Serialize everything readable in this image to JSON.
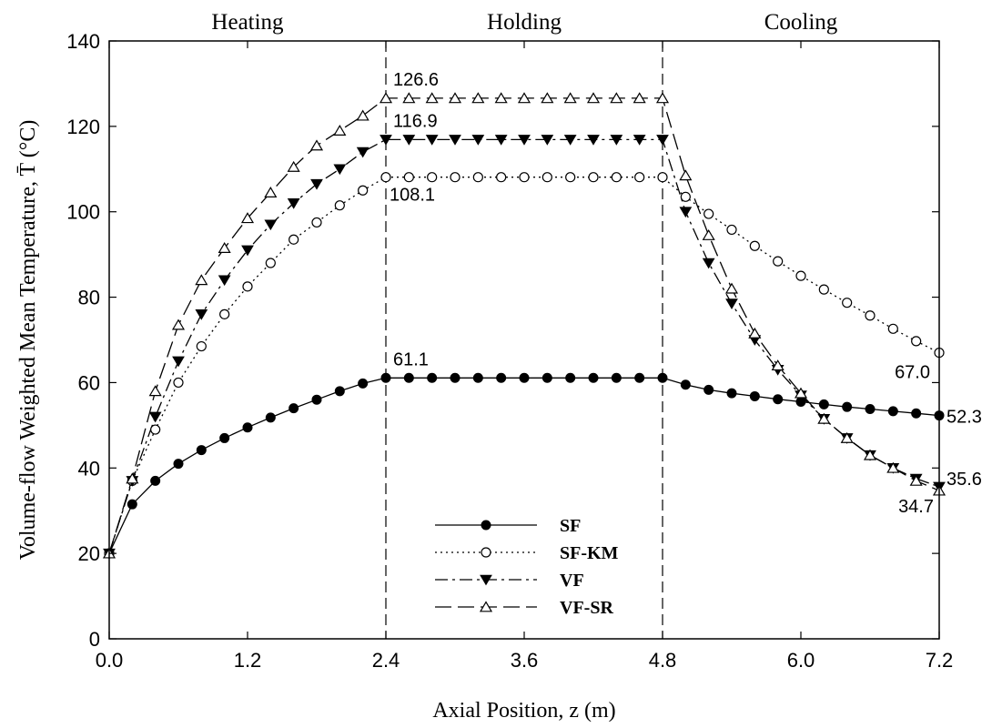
{
  "chart_data": {
    "type": "line",
    "xlabel": "Axial Position, z (m)",
    "ylabel": "Volume-flow Weighted Mean Temperature, T̄ (°C)",
    "xlim": [
      0,
      7.2
    ],
    "ylim": [
      0,
      140
    ],
    "x_ticks": [
      "0.0",
      "1.2",
      "2.4",
      "3.6",
      "4.8",
      "6.0",
      "7.2"
    ],
    "y_ticks": [
      "0",
      "20",
      "40",
      "60",
      "80",
      "100",
      "120",
      "140"
    ],
    "grid": false,
    "legend_position": "bottom-center",
    "sections": [
      {
        "label": "Heating"
      },
      {
        "label": "Holding"
      },
      {
        "label": "Cooling"
      }
    ],
    "dividers_x": [
      2.4,
      4.8
    ],
    "x": [
      0,
      0.2,
      0.4,
      0.6,
      0.8,
      1.0,
      1.2,
      1.4,
      1.6,
      1.8,
      2.0,
      2.2,
      2.4,
      2.6,
      2.8,
      3.0,
      3.2,
      3.4,
      3.6,
      3.8,
      4.0,
      4.2,
      4.4,
      4.6,
      4.8,
      5.0,
      5.2,
      5.4,
      5.6,
      5.8,
      6.0,
      6.2,
      6.4,
      6.6,
      6.8,
      7.0,
      7.2
    ],
    "series": [
      {
        "name": "SF",
        "marker": "filled-circle",
        "dash": "solid",
        "values": [
          20,
          31.5,
          37,
          41,
          44.2,
          47,
          49.5,
          51.8,
          54,
          56,
          58,
          59.8,
          61.1,
          61.1,
          61.1,
          61.1,
          61.1,
          61.1,
          61.1,
          61.1,
          61.1,
          61.1,
          61.1,
          61.1,
          61.1,
          59.5,
          58.3,
          57.5,
          56.8,
          56.1,
          55.5,
          54.9,
          54.3,
          53.8,
          53.3,
          52.8,
          52.3
        ]
      },
      {
        "name": "SF-KM",
        "marker": "open-circle",
        "dash": "dotted",
        "values": [
          20,
          37,
          49,
          60,
          68.5,
          76,
          82.5,
          88,
          93.5,
          97.5,
          101.5,
          105,
          108.1,
          108.1,
          108.1,
          108.1,
          108.1,
          108.1,
          108.1,
          108.1,
          108.1,
          108.1,
          108.1,
          108.1,
          108.1,
          103.5,
          99.5,
          95.8,
          92,
          88.4,
          85,
          81.8,
          78.7,
          75.7,
          72.6,
          69.7,
          67.0
        ]
      },
      {
        "name": "VF",
        "marker": "filled-triangle-down",
        "dash": "dash-dot",
        "values": [
          20,
          37,
          52,
          65,
          76,
          84,
          91,
          97,
          102,
          106.5,
          110,
          114,
          116.9,
          116.9,
          116.9,
          116.9,
          116.9,
          116.9,
          116.9,
          116.9,
          116.9,
          116.9,
          116.9,
          116.9,
          116.9,
          100,
          88,
          78.5,
          70,
          63,
          57,
          51.5,
          47,
          43,
          40,
          37.5,
          35.6
        ]
      },
      {
        "name": "VF-SR",
        "marker": "open-triangle-up",
        "dash": "long-dash",
        "values": [
          20,
          37.5,
          58,
          73.5,
          84,
          91.5,
          98.5,
          104.5,
          110.5,
          115.5,
          119,
          122.5,
          126.6,
          126.6,
          126.6,
          126.6,
          126.6,
          126.6,
          126.6,
          126.6,
          126.6,
          126.6,
          126.6,
          126.6,
          126.6,
          108.5,
          94.5,
          82,
          71.5,
          64,
          57.5,
          51.5,
          47,
          43,
          40,
          37,
          34.7
        ]
      }
    ],
    "annotations": [
      {
        "text": "126.6",
        "x": 2.4,
        "y": 126.6
      },
      {
        "text": "116.9",
        "x": 2.4,
        "y": 116.9
      },
      {
        "text": "108.1",
        "x": 2.4,
        "y": 108.1
      },
      {
        "text": "61.1",
        "x": 2.4,
        "y": 61.1
      },
      {
        "text": "67.0",
        "x": 7.2,
        "y": 67.0
      },
      {
        "text": "52.3",
        "x": 7.2,
        "y": 52.3
      },
      {
        "text": "35.6",
        "x": 7.2,
        "y": 35.6
      },
      {
        "text": "34.7",
        "x": 7.2,
        "y": 34.7
      }
    ]
  }
}
